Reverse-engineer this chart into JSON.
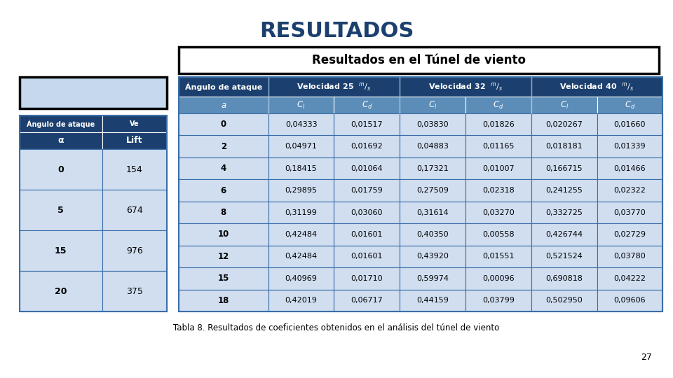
{
  "title": "RESULTADOS",
  "table_title": "Resultados en el Túnel de viento",
  "caption": "Tabla 8. Resultados de coeficientes obtenidos en el análisis del túnel de viento",
  "page_number": "27",
  "data_rows": [
    [
      "0",
      "0,04333",
      "0,01517",
      "0,03830",
      "0,01826",
      "0,020267",
      "0,01660"
    ],
    [
      "2",
      "0,04971",
      "0,01692",
      "0,04883",
      "0,01165",
      "0,018181",
      "0,01339"
    ],
    [
      "4",
      "0,18415",
      "0,01064",
      "0,17321",
      "0,01007",
      "0,166715",
      "0,01466"
    ],
    [
      "6",
      "0,29895",
      "0,01759",
      "0,27509",
      "0,02318",
      "0,241255",
      "0,02322"
    ],
    [
      "8",
      "0,31199",
      "0,03060",
      "0,31614",
      "0,03270",
      "0,332725",
      "0,03770"
    ],
    [
      "10",
      "0,42484",
      "0,01601",
      "0,40350",
      "0,00558",
      "0,426744",
      "0,02729"
    ],
    [
      "12",
      "0,42484",
      "0,01601",
      "0,43920",
      "0,01551",
      "0,521524",
      "0,03780"
    ],
    [
      "15",
      "0,40969",
      "0,01710",
      "0,59974",
      "0,00096",
      "0,690818",
      "0,04222"
    ],
    [
      "18",
      "0,42019",
      "0,06717",
      "0,44159",
      "0,03799",
      "0,502950",
      "0,09606"
    ]
  ],
  "small_table_rows": [
    [
      "0",
      "154"
    ],
    [
      "5",
      "674"
    ],
    [
      "15",
      "976"
    ],
    [
      "20",
      "375"
    ]
  ],
  "color_hdr1_bg": "#1B3F6E",
  "color_hdr2_bg": "#5B8DB8",
  "color_row_blue": "#D0DEF0",
  "color_row_white": "#FFFFFF",
  "color_first_col_bg": "#2B5FA0",
  "color_divider": "#3A6EA8",
  "color_title_text": "#1B3F6E"
}
